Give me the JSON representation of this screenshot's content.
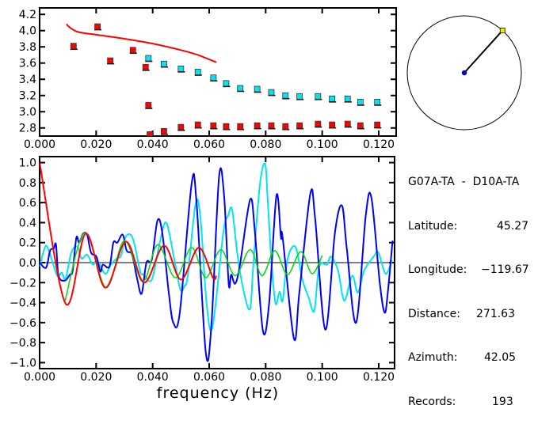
{
  "colors": {
    "red": "#ff0000",
    "cyan": "#00e5f0",
    "blue": "#0000ff",
    "green": "#00dd00",
    "axis": "#000000",
    "yellow": "#f0f000"
  },
  "info": {
    "title": "G07A-TA  -  D10A-TA",
    "rows": [
      {
        "label": "Latitude:",
        "value": "45.27"
      },
      {
        "label": "Longitude:",
        "value": "−119.67"
      },
      {
        "label": "Distance:",
        "value": "271.63"
      },
      {
        "label": "Azimuth:",
        "value": "42.05"
      },
      {
        "label": "Records:",
        "value": "193"
      }
    ]
  },
  "map": {
    "azimuth_deg": 42.05
  },
  "chart_data": [
    {
      "type": "scatter",
      "xlim": [
        0,
        0.125
      ],
      "ylim": [
        2.7,
        4.28
      ],
      "xticks": [
        "0.000",
        "0.020",
        "0.040",
        "0.060",
        "0.080",
        "0.100",
        "0.120"
      ],
      "yticks": [
        "2.8",
        "3.0",
        "3.2",
        "3.4",
        "3.6",
        "3.8",
        "4.0",
        "4.2"
      ],
      "series": [
        {
          "color": "red",
          "kind": "points",
          "x": [
            0.012,
            0.0205,
            0.025,
            0.033,
            0.0375,
            0.0385,
            0.039,
            0.044,
            0.05,
            0.056,
            0.0615,
            0.066,
            0.071,
            0.077,
            0.082,
            0.087,
            0.092,
            0.0985,
            0.1035,
            0.109,
            0.1135,
            0.1195
          ],
          "y": [
            3.81,
            4.05,
            3.63,
            3.76,
            3.55,
            3.08,
            2.72,
            2.76,
            2.81,
            2.84,
            2.83,
            2.82,
            2.82,
            2.83,
            2.83,
            2.82,
            2.83,
            2.85,
            2.84,
            2.85,
            2.83,
            2.84
          ]
        },
        {
          "color": "cyan",
          "kind": "points",
          "x": [
            0.0385,
            0.044,
            0.05,
            0.056,
            0.0615,
            0.066,
            0.071,
            0.077,
            0.082,
            0.087,
            0.092,
            0.0985,
            0.1035,
            0.109,
            0.1135,
            0.1195
          ],
          "y": [
            3.66,
            3.59,
            3.53,
            3.49,
            3.42,
            3.35,
            3.29,
            3.28,
            3.24,
            3.2,
            3.19,
            3.19,
            3.16,
            3.16,
            3.12,
            3.12
          ]
        },
        {
          "color": "red",
          "kind": "line",
          "x": [
            0.0095,
            0.011,
            0.014,
            0.02,
            0.03,
            0.04,
            0.05,
            0.056,
            0.0625
          ],
          "y": [
            4.08,
            4.03,
            3.98,
            3.95,
            3.9,
            3.84,
            3.76,
            3.7,
            3.61
          ]
        }
      ]
    },
    {
      "type": "line",
      "xlabel": "frequency (Hz)",
      "xlim": [
        0,
        0.1255
      ],
      "ylim": [
        -1.06,
        1.06
      ],
      "xticks": [
        "0.000",
        "0.020",
        "0.040",
        "0.060",
        "0.080",
        "0.100",
        "0.120"
      ],
      "yticks": [
        "−1.0",
        "−0.8",
        "−0.6",
        "−0.4",
        "−0.2",
        "0.0",
        "0.2",
        "0.4",
        "0.6",
        "0.8",
        "1.0"
      ],
      "series": [
        {
          "color": "cyan",
          "x": [
            0,
            0.002,
            0.0034,
            0.0062,
            0.0078,
            0.0092,
            0.0112,
            0.0134,
            0.0148,
            0.0168,
            0.0188,
            0.0204,
            0.0232,
            0.0252,
            0.0272,
            0.0288,
            0.0303,
            0.0322,
            0.0336,
            0.0356,
            0.0369,
            0.0397,
            0.0425,
            0.0448,
            0.0476,
            0.0498,
            0.0513,
            0.0524,
            0.0552,
            0.0569,
            0.0591,
            0.0612,
            0.065,
            0.0667,
            0.0681,
            0.07,
            0.0723,
            0.0745,
            0.0756,
            0.0779,
            0.0798,
            0.0807,
            0.0821,
            0.0835,
            0.0849,
            0.086,
            0.0877,
            0.0905,
            0.093,
            0.0952,
            0.0972,
            0.0989,
            0.1017,
            0.1031,
            0.1056,
            0.1078,
            0.1106,
            0.1126,
            0.1148,
            0.1182,
            0.1199,
            0.1224,
            0.1247
          ],
          "y": [
            -0.04,
            0.16,
            0.11,
            -0.13,
            -0.1,
            -0.16,
            0.1,
            0.16,
            0.04,
            0.08,
            -0.02,
            0.02,
            -0.11,
            -0.02,
            0.04,
            0.07,
            0.25,
            0.28,
            0.18,
            -0.09,
            -0.12,
            -0.17,
            0.2,
            0.4,
            0.04,
            -0.27,
            -0.23,
            -0.13,
            0.59,
            0.45,
            -0.41,
            -0.64,
            0.3,
            0.47,
            0.53,
            0.08,
            -0.3,
            -0.46,
            -0.03,
            0.77,
            0.99,
            0.63,
            -0.02,
            -0.41,
            -0.29,
            -0.38,
            0.03,
            0.16,
            -0.17,
            -0.35,
            -0.48,
            -0.04,
            -0.02,
            0.06,
            -0.08,
            -0.38,
            -0.13,
            -0.3,
            -0.08,
            0.06,
            0.1,
            -0.11,
            0.02
          ]
        },
        {
          "color": "blue",
          "x": [
            0,
            0.0023,
            0.0037,
            0.005,
            0.0058,
            0.0067,
            0.0089,
            0.0107,
            0.0117,
            0.013,
            0.014,
            0.0154,
            0.0168,
            0.0182,
            0.0201,
            0.0215,
            0.0224,
            0.0247,
            0.0261,
            0.0275,
            0.0294,
            0.0308,
            0.0327,
            0.0345,
            0.0361,
            0.0378,
            0.0397,
            0.0417,
            0.0434,
            0.0457,
            0.0473,
            0.0496,
            0.0538,
            0.0555,
            0.0588,
            0.0608,
            0.0635,
            0.0653,
            0.0669,
            0.0678,
            0.0692,
            0.0709,
            0.0745,
            0.0762,
            0.079,
            0.0812,
            0.0838,
            0.0854,
            0.086,
            0.09,
            0.0919,
            0.0958,
            0.0975,
            0.1011,
            0.1045,
            0.107,
            0.1087,
            0.112,
            0.1154,
            0.1174,
            0.1204,
            0.1221,
            0.1232,
            0.1249
          ],
          "y": [
            0.0,
            -0.05,
            0.12,
            0.14,
            0.18,
            -0.13,
            -0.18,
            -0.12,
            -0.08,
            0.25,
            0.2,
            0.29,
            0.28,
            0.1,
            0.06,
            -0.09,
            -0.02,
            -0.04,
            0.2,
            0.2,
            0.28,
            0.12,
            0.08,
            -0.16,
            -0.31,
            0.0,
            0.03,
            0.42,
            0.3,
            -0.3,
            -0.6,
            -0.5,
            0.79,
            0.61,
            -0.9,
            -0.62,
            0.86,
            0.66,
            -0.21,
            -0.12,
            -0.21,
            -0.02,
            0.63,
            0.3,
            -0.68,
            -0.41,
            0.67,
            0.25,
            0.25,
            -0.76,
            -0.3,
            0.69,
            0.44,
            -0.67,
            0.3,
            0.57,
            0.14,
            -0.6,
            0.47,
            0.65,
            -0.21,
            -0.5,
            -0.3,
            0.22
          ]
        },
        {
          "color": "green",
          "x": [
            0.009,
            0.016,
            0.0235,
            0.03,
            0.0365,
            0.0418,
            0.048,
            0.0538,
            0.0588,
            0.0641,
            0.0692,
            0.0745,
            0.0787,
            0.0832,
            0.0877,
            0.0924,
            0.0964,
            0.1
          ],
          "y": [
            -0.38,
            0.3,
            -0.25,
            0.22,
            -0.19,
            0.18,
            -0.15,
            0.15,
            -0.15,
            0.13,
            -0.13,
            0.13,
            -0.13,
            0.12,
            -0.12,
            0.11,
            -0.11,
            0.07
          ]
        },
        {
          "color": "red",
          "x": [
            0,
            0.0092,
            0.0163,
            0.0232,
            0.0305,
            0.037,
            0.044,
            0.05,
            0.0563,
            0.0613,
            0.0625
          ],
          "y": [
            1.0,
            -0.41,
            0.29,
            -0.25,
            0.21,
            -0.2,
            0.17,
            -0.17,
            0.15,
            -0.15,
            -0.13
          ]
        }
      ]
    }
  ]
}
